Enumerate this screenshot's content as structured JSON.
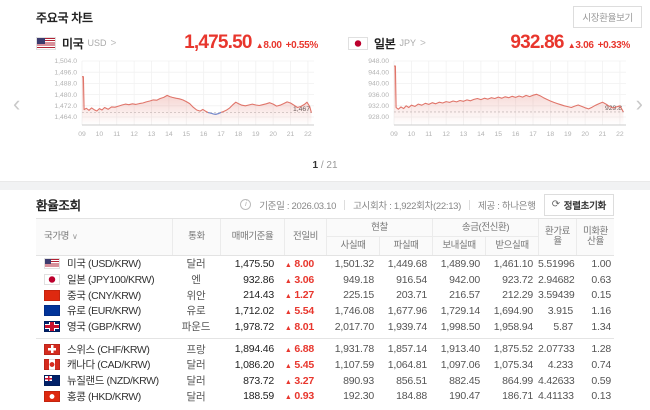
{
  "colors": {
    "accent_red": "#e8362d",
    "line_red": "#e0756a",
    "line_blue": "#6b8fd8",
    "grid": "#f1f1f1",
    "axis": "#cccccc"
  },
  "symbols": {
    "up": "▲",
    "sort": "∨",
    "link_chevron": ">",
    "nav_left": "‹",
    "nav_right": "›",
    "refresh": "⟳",
    "info": "i",
    "pager_sep": "/"
  },
  "top": {
    "title": "주요국 차트",
    "market_rate_button": "시장환율보기"
  },
  "charts": [
    {
      "country": "미국",
      "code": "USD",
      "flag": "us",
      "price": "1,475.50",
      "change": "8.00",
      "change_pct": "+0.55%"
    },
    {
      "country": "일본",
      "code": "JPY",
      "flag": "jp",
      "price": "932.86",
      "change": "3.06",
      "change_pct": "+0.33%"
    }
  ],
  "pagination": {
    "current": "1",
    "rest": "/ 21"
  },
  "table": {
    "title": "환율조회",
    "info": {
      "base_date": "기준일 : 2026.03.10",
      "round": "고시회차 : 1,922회차(22:13)",
      "provider": "제공 : 하나은행",
      "reset_button": "정렬초기화"
    },
    "columns": {
      "country": "국가명",
      "currency": "통화",
      "base_rate": "매매기준율",
      "change": "전일비",
      "cash_group": "현찰",
      "cash_buy": "사실때",
      "cash_sell": "파실때",
      "remit_group": "송금(전신환)",
      "send": "보내실때",
      "receive": "받으실때",
      "fee": "환가료율",
      "conv": "미화환산율"
    },
    "groups": [
      [
        {
          "flag": "us",
          "name": "미국 (USD/KRW)",
          "currency": "달러",
          "base_rate": "1,475.50",
          "change": "8.00",
          "cash_buy": "1,501.32",
          "cash_sell": "1,449.68",
          "send": "1,489.90",
          "receive": "1,461.10",
          "fee_rate": "5.51996",
          "usd_conv": "1.00"
        },
        {
          "flag": "jp",
          "name": "일본 (JPY100/KRW)",
          "currency": "엔",
          "base_rate": "932.86",
          "change": "3.06",
          "cash_buy": "949.18",
          "cash_sell": "916.54",
          "send": "942.00",
          "receive": "923.72",
          "fee_rate": "2.94682",
          "usd_conv": "0.63"
        },
        {
          "flag": "cn",
          "name": "중국 (CNY/KRW)",
          "currency": "위안",
          "base_rate": "214.43",
          "change": "1.27",
          "cash_buy": "225.15",
          "cash_sell": "203.71",
          "send": "216.57",
          "receive": "212.29",
          "fee_rate": "3.59439",
          "usd_conv": "0.15"
        },
        {
          "flag": "eu",
          "name": "유로 (EUR/KRW)",
          "currency": "유로",
          "base_rate": "1,712.02",
          "change": "5.54",
          "cash_buy": "1,746.08",
          "cash_sell": "1,677.96",
          "send": "1,729.14",
          "receive": "1,694.90",
          "fee_rate": "3.915",
          "usd_conv": "1.16"
        },
        {
          "flag": "gb",
          "name": "영국 (GBP/KRW)",
          "currency": "파운드",
          "base_rate": "1,978.72",
          "change": "8.01",
          "cash_buy": "2,017.70",
          "cash_sell": "1,939.74",
          "send": "1,998.50",
          "receive": "1,958.94",
          "fee_rate": "5.87",
          "usd_conv": "1.34"
        }
      ],
      [
        {
          "flag": "ch",
          "name": "스위스 (CHF/KRW)",
          "currency": "프랑",
          "base_rate": "1,894.46",
          "change": "6.88",
          "cash_buy": "1,931.78",
          "cash_sell": "1,857.14",
          "send": "1,913.40",
          "receive": "1,875.52",
          "fee_rate": "2.07733",
          "usd_conv": "1.28"
        },
        {
          "flag": "ca",
          "name": "캐나다 (CAD/KRW)",
          "currency": "달러",
          "base_rate": "1,086.20",
          "change": "5.45",
          "cash_buy": "1,107.59",
          "cash_sell": "1,064.81",
          "send": "1,097.06",
          "receive": "1,075.34",
          "fee_rate": "4.233",
          "usd_conv": "0.74"
        },
        {
          "flag": "nz",
          "name": "뉴질랜드 (NZD/KRW)",
          "currency": "달러",
          "base_rate": "873.72",
          "change": "3.27",
          "cash_buy": "890.93",
          "cash_sell": "856.51",
          "send": "882.45",
          "receive": "864.99",
          "fee_rate": "4.42633",
          "usd_conv": "0.59"
        },
        {
          "flag": "hk",
          "name": "홍콩 (HKD/KRW)",
          "currency": "달러",
          "base_rate": "188.59",
          "change": "0.93",
          "cash_buy": "192.30",
          "cash_sell": "184.88",
          "send": "190.47",
          "receive": "186.71",
          "fee_rate": "4.41133",
          "usd_conv": "0.13"
        }
      ]
    ]
  },
  "chart_data": [
    {
      "type": "line",
      "title": "미국 USD/KRW 당일 추이",
      "vmax": 1504,
      "vmin": 1464,
      "ylabels": [
        "1,504.0",
        "1,496.0",
        "1,488.0",
        "1,480.0",
        "1,472.0",
        "1,464.0"
      ],
      "xlabels": [
        "09",
        "10",
        "11",
        "12",
        "13",
        "14",
        "15",
        "16",
        "17",
        "18",
        "19",
        "20",
        "21",
        "22"
      ],
      "dash": 1467.1,
      "last_label": "1,467",
      "points": [
        [
          9.0,
          1492.8
        ],
        [
          9.08,
          1492.8
        ],
        [
          9.12,
          1469.3
        ],
        [
          9.25,
          1470.2
        ],
        [
          9.4,
          1468.8
        ],
        [
          9.55,
          1470.5
        ],
        [
          9.7,
          1469.2
        ],
        [
          9.85,
          1468.3
        ],
        [
          10.0,
          1470.0
        ],
        [
          10.15,
          1469.0
        ],
        [
          10.3,
          1470.8
        ],
        [
          10.5,
          1469.5
        ],
        [
          10.7,
          1471.2
        ],
        [
          10.9,
          1471.0
        ],
        [
          11.1,
          1471.8
        ],
        [
          11.3,
          1472.6
        ],
        [
          11.5,
          1473.2
        ],
        [
          11.7,
          1472.8
        ],
        [
          11.9,
          1473.4
        ],
        [
          12.1,
          1473.0
        ],
        [
          12.3,
          1473.6
        ],
        [
          12.5,
          1474.0
        ],
        [
          12.7,
          1474.8
        ],
        [
          12.9,
          1475.4
        ],
        [
          13.1,
          1476.2
        ],
        [
          13.3,
          1476.0
        ],
        [
          13.5,
          1477.2
        ],
        [
          13.7,
          1478.0
        ],
        [
          13.9,
          1479.4
        ],
        [
          14.05,
          1478.6
        ],
        [
          14.2,
          1478.0
        ],
        [
          14.4,
          1477.4
        ],
        [
          14.6,
          1477.0
        ],
        [
          14.8,
          1476.2
        ],
        [
          15.0,
          1475.0
        ],
        [
          15.2,
          1473.6
        ],
        [
          15.4,
          1471.0
        ],
        [
          15.6,
          1469.0
        ],
        [
          15.8,
          1468.2
        ],
        [
          15.95,
          1469.4
        ],
        [
          16.1,
          1468.2
        ],
        [
          16.25,
          1467.2
        ],
        [
          16.4,
          1466.8
        ],
        [
          16.55,
          1466.2
        ],
        [
          16.7,
          1465.9
        ],
        [
          16.85,
          1466.4
        ],
        [
          17.0,
          1467.3
        ],
        [
          17.15,
          1467.9
        ],
        [
          17.3,
          1468.8
        ],
        [
          17.5,
          1470.5
        ],
        [
          17.7,
          1473.0
        ],
        [
          17.85,
          1474.6
        ],
        [
          18.0,
          1473.6
        ],
        [
          18.2,
          1472.4
        ],
        [
          18.4,
          1472.0
        ],
        [
          18.6,
          1472.6
        ],
        [
          18.8,
          1473.2
        ],
        [
          19.0,
          1472.6
        ],
        [
          19.2,
          1472.2
        ],
        [
          19.4,
          1472.8
        ],
        [
          19.6,
          1473.4
        ],
        [
          19.8,
          1474.2
        ],
        [
          20.0,
          1473.2
        ],
        [
          20.2,
          1471.8
        ],
        [
          20.4,
          1472.4
        ],
        [
          20.6,
          1473.6
        ],
        [
          20.8,
          1474.8
        ],
        [
          21.0,
          1474.0
        ],
        [
          21.2,
          1472.4
        ],
        [
          21.4,
          1470.8
        ],
        [
          21.6,
          1471.6
        ],
        [
          21.8,
          1473.0
        ],
        [
          21.95,
          1474.6
        ],
        [
          22.1,
          1471.5
        ],
        [
          22.2,
          1467.1
        ]
      ],
      "blue_points": [
        [
          16.25,
          1467.2
        ],
        [
          16.4,
          1466.8
        ],
        [
          16.55,
          1466.2
        ],
        [
          16.7,
          1465.9
        ],
        [
          16.85,
          1466.4
        ],
        [
          17.0,
          1467.3
        ]
      ]
    },
    {
      "type": "line",
      "title": "일본 JPY100/KRW 당일 추이",
      "vmax": 948,
      "vmin": 928,
      "ylabels": [
        "948.00",
        "944.00",
        "940.00",
        "936.00",
        "932.00",
        "928.00"
      ],
      "xlabels": [
        "09",
        "10",
        "11",
        "12",
        "13",
        "14",
        "15",
        "16",
        "17",
        "18",
        "19",
        "20",
        "21",
        "22"
      ],
      "dash": 929.8,
      "last_label": "929.8",
      "points": [
        [
          9.0,
          946.2
        ],
        [
          9.08,
          946.2
        ],
        [
          9.12,
          931.4
        ],
        [
          9.25,
          930.8
        ],
        [
          9.4,
          931.6
        ],
        [
          9.55,
          931.0
        ],
        [
          9.7,
          932.0
        ],
        [
          9.85,
          931.4
        ],
        [
          10.0,
          932.2
        ],
        [
          10.2,
          931.8
        ],
        [
          10.4,
          932.6
        ],
        [
          10.6,
          932.2
        ],
        [
          10.8,
          932.9
        ],
        [
          11.0,
          932.5
        ],
        [
          11.2,
          933.1
        ],
        [
          11.4,
          932.7
        ],
        [
          11.6,
          933.3
        ],
        [
          11.8,
          933.0
        ],
        [
          12.0,
          933.5
        ],
        [
          12.2,
          933.2
        ],
        [
          12.4,
          933.7
        ],
        [
          12.6,
          933.4
        ],
        [
          12.8,
          933.9
        ],
        [
          13.0,
          933.6
        ],
        [
          13.2,
          934.1
        ],
        [
          13.4,
          933.8
        ],
        [
          13.6,
          934.3
        ],
        [
          13.8,
          934.6
        ],
        [
          14.0,
          934.2
        ],
        [
          14.2,
          934.7
        ],
        [
          14.4,
          934.4
        ],
        [
          14.6,
          934.9
        ],
        [
          14.8,
          934.6
        ],
        [
          15.0,
          935.1
        ],
        [
          15.2,
          934.7
        ],
        [
          15.4,
          935.2
        ],
        [
          15.6,
          934.9
        ],
        [
          15.8,
          935.4
        ],
        [
          16.0,
          935.0
        ],
        [
          16.2,
          935.5
        ],
        [
          16.4,
          935.1
        ],
        [
          16.6,
          935.7
        ],
        [
          16.8,
          935.3
        ],
        [
          17.0,
          935.8
        ],
        [
          17.2,
          936.1
        ],
        [
          17.4,
          935.6
        ],
        [
          17.6,
          934.9
        ],
        [
          17.8,
          934.3
        ],
        [
          18.0,
          933.7
        ],
        [
          18.2,
          933.2
        ],
        [
          18.4,
          932.8
        ],
        [
          18.6,
          932.4
        ],
        [
          18.8,
          932.0
        ],
        [
          19.0,
          931.7
        ],
        [
          19.2,
          931.4
        ],
        [
          19.4,
          931.9
        ],
        [
          19.6,
          932.3
        ],
        [
          19.8,
          931.8
        ],
        [
          20.0,
          931.3
        ],
        [
          20.2,
          930.9
        ],
        [
          20.4,
          931.5
        ],
        [
          20.6,
          932.2
        ],
        [
          20.8,
          932.8
        ],
        [
          21.0,
          933.3
        ],
        [
          21.2,
          932.6
        ],
        [
          21.4,
          931.8
        ],
        [
          21.6,
          931.2
        ],
        [
          21.8,
          931.6
        ],
        [
          22.0,
          932.0
        ],
        [
          22.1,
          930.9
        ],
        [
          22.2,
          929.8
        ]
      ],
      "blue_points": []
    }
  ]
}
